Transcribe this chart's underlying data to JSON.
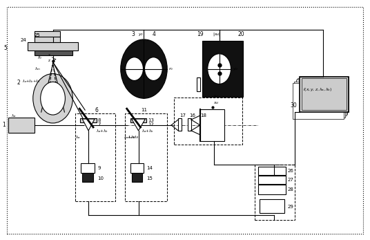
{
  "figsize": [
    5.36,
    3.47
  ],
  "dpi": 100,
  "bg_color": "#ffffff"
}
